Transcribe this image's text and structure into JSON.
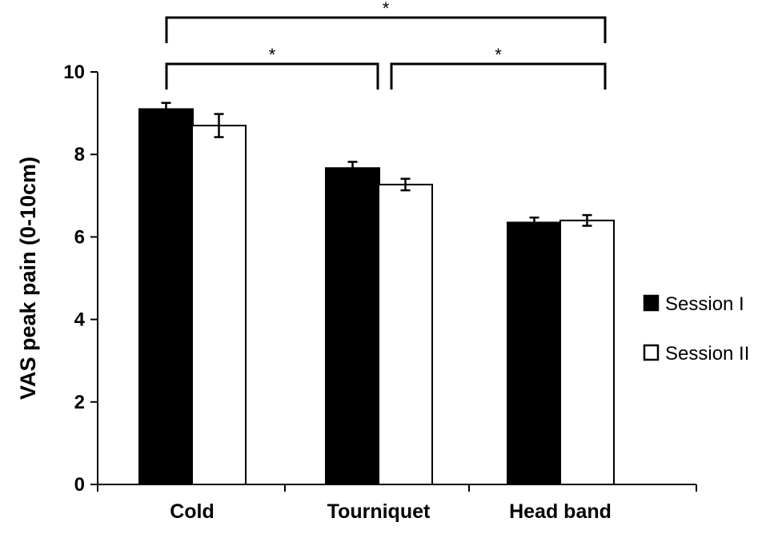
{
  "chart_data": {
    "type": "bar",
    "title": "",
    "xlabel": "",
    "ylabel": "VAS peak pain (0-10cm)",
    "ylim": [
      0,
      10
    ],
    "yticks": [
      0,
      2,
      4,
      6,
      8,
      10
    ],
    "categories": [
      "Cold",
      "Tourniquet",
      "Head band"
    ],
    "series": [
      {
        "name": "Session I",
        "color": "#000000",
        "values": [
          9.1,
          7.67,
          6.35
        ],
        "errors": [
          0.15,
          0.15,
          0.12
        ]
      },
      {
        "name": "Session II",
        "color": "#ffffff",
        "values": [
          8.7,
          7.27,
          6.4
        ],
        "errors": [
          0.28,
          0.14,
          0.13
        ]
      }
    ],
    "legend_position": "right",
    "grid": false,
    "significance": [
      {
        "from": "Cold",
        "to": "Tourniquet",
        "label": "*"
      },
      {
        "from": "Tourniquet",
        "to": "Head band",
        "label": "*"
      },
      {
        "from": "Cold",
        "to": "Head band",
        "label": "*"
      }
    ]
  }
}
